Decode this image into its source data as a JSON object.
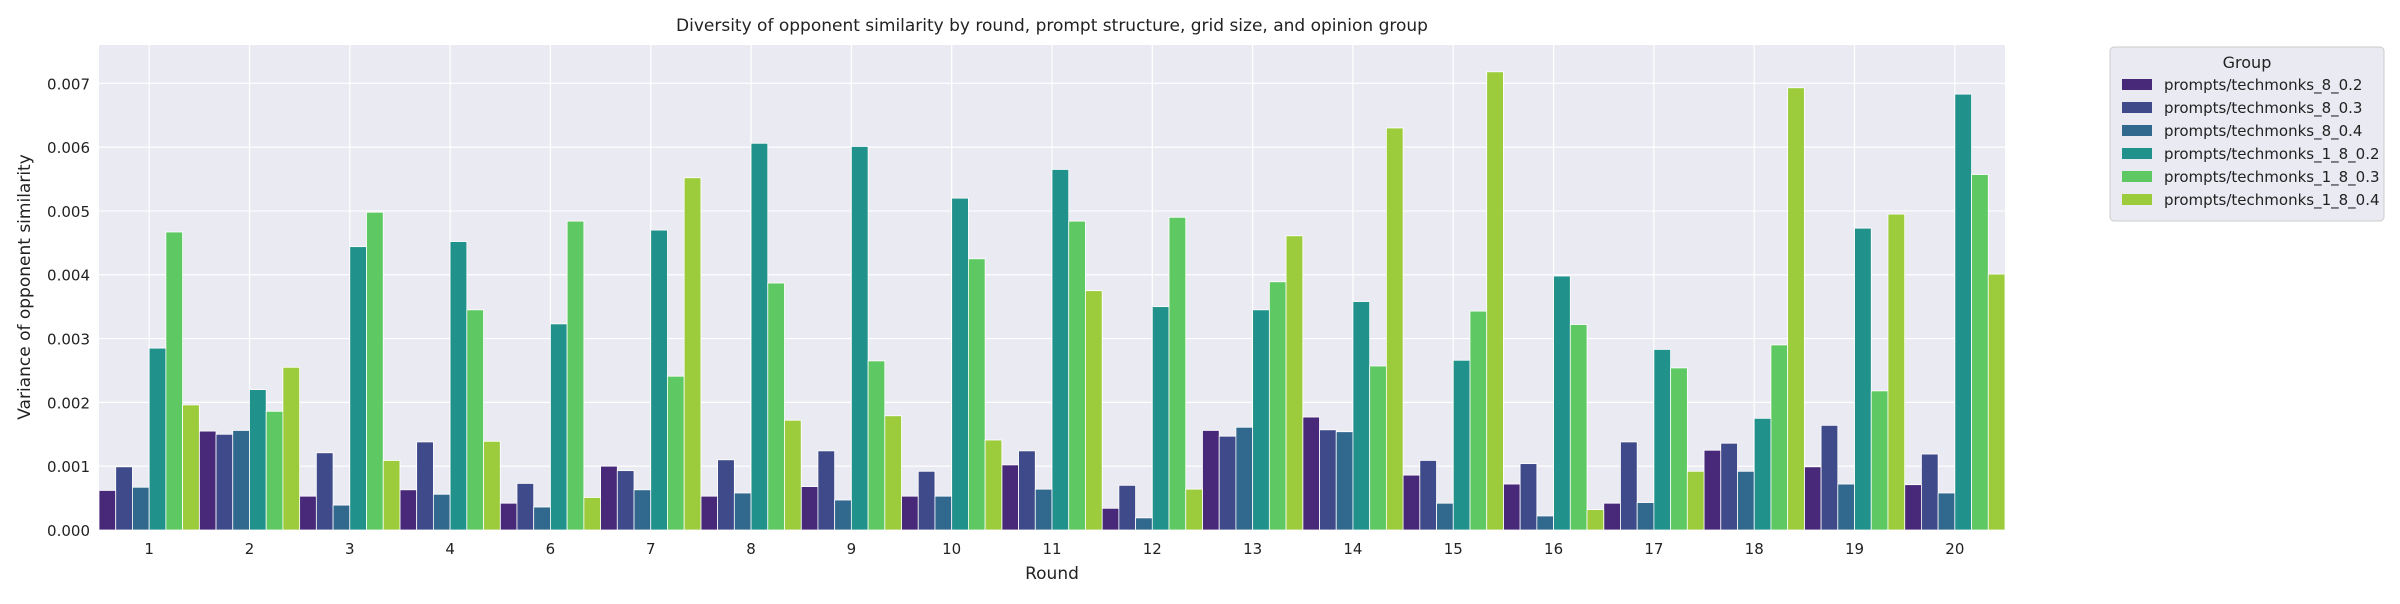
{
  "chart_data": {
    "type": "bar",
    "title": "Diversity of opponent similarity by round, prompt structure, grid size, and opinion group",
    "xlabel": "Round",
    "ylabel": "Variance of opponent similarity",
    "ylim": [
      0,
      0.0076
    ],
    "yticks": [
      "0.000",
      "0.001",
      "0.002",
      "0.003",
      "0.004",
      "0.005",
      "0.006",
      "0.007"
    ],
    "grid": true,
    "legend_title": "Group",
    "legend_position": "outside-right-top",
    "categories": [
      "1",
      "2",
      "3",
      "4",
      "6",
      "7",
      "8",
      "9",
      "10",
      "11",
      "12",
      "13",
      "14",
      "15",
      "16",
      "17",
      "18",
      "19",
      "20"
    ],
    "series": [
      {
        "name": "prompts/techmonks_8_0.2",
        "color": "#482878",
        "values": [
          0.00062,
          0.00155,
          0.00053,
          0.00063,
          0.00042,
          0.001,
          0.00053,
          0.00068,
          0.00053,
          0.00102,
          0.00034,
          0.00156,
          0.00177,
          0.00086,
          0.00072,
          0.00042,
          0.00125,
          0.00099,
          0.00071
        ]
      },
      {
        "name": "prompts/techmonks_8_0.3",
        "color": "#3e4a89",
        "values": [
          0.00099,
          0.0015,
          0.00121,
          0.00138,
          0.00073,
          0.00093,
          0.0011,
          0.00124,
          0.00092,
          0.00124,
          0.0007,
          0.00147,
          0.00157,
          0.00109,
          0.00104,
          0.00138,
          0.00136,
          0.00164,
          0.00119
        ]
      },
      {
        "name": "prompts/techmonks_8_0.4",
        "color": "#31688e",
        "values": [
          0.00067,
          0.00156,
          0.00039,
          0.00056,
          0.00036,
          0.00063,
          0.00058,
          0.00047,
          0.00053,
          0.00064,
          0.00019,
          0.00161,
          0.00154,
          0.00042,
          0.00022,
          0.00043,
          0.00092,
          0.00072,
          0.00058
        ]
      },
      {
        "name": "prompts/techmonks_1_8_0.2",
        "color": "#21918c",
        "values": [
          0.00285,
          0.0022,
          0.00444,
          0.00452,
          0.00323,
          0.0047,
          0.00606,
          0.00601,
          0.0052,
          0.00565,
          0.0035,
          0.00345,
          0.00358,
          0.00266,
          0.00398,
          0.00283,
          0.00175,
          0.00473,
          0.00683
        ]
      },
      {
        "name": "prompts/techmonks_1_8_0.3",
        "color": "#5ec962",
        "values": [
          0.00467,
          0.00186,
          0.00498,
          0.00345,
          0.00484,
          0.00241,
          0.00387,
          0.00265,
          0.00425,
          0.00484,
          0.0049,
          0.00389,
          0.00257,
          0.00343,
          0.00322,
          0.00254,
          0.0029,
          0.00218,
          0.00557
        ]
      },
      {
        "name": "prompts/techmonks_1_8_0.4",
        "color": "#9ccb3c",
        "values": [
          0.00196,
          0.00255,
          0.00109,
          0.00139,
          0.00051,
          0.00552,
          0.00172,
          0.00179,
          0.00141,
          0.00375,
          0.00064,
          0.00461,
          0.0063,
          0.00718,
          0.00032,
          0.00092,
          0.00693,
          0.00495,
          0.00401
        ]
      }
    ]
  }
}
